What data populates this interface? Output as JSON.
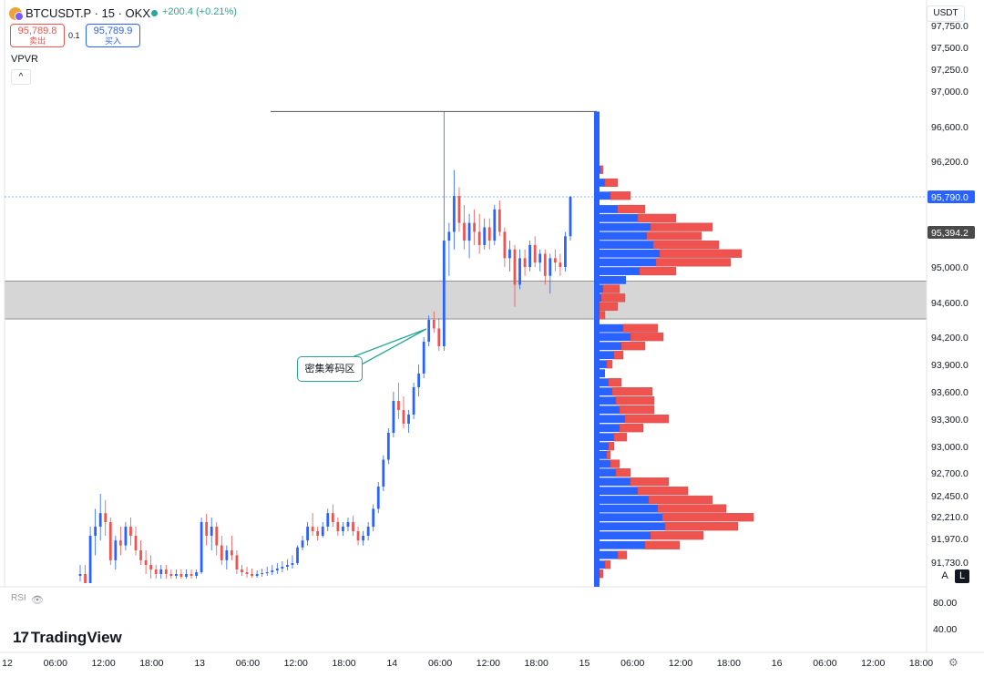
{
  "header": {
    "symbol": "BTCUSDT.P · 15 · OKX",
    "change": "+200.4 (+0.21%)",
    "sell_price": "95,789.8",
    "sell_label": "卖出",
    "spread": "0.1",
    "buy_price": "95,789.9",
    "buy_label": "买入",
    "indicator": "VPVR",
    "collapse_glyph": "^",
    "currency": "USDT"
  },
  "annotation": {
    "text": "密集筹码区"
  },
  "rsi": {
    "label": "RSI",
    "axis_ticks": [
      "80.00",
      "40.00"
    ]
  },
  "brand": {
    "mark": "17",
    "name": "TradingView"
  },
  "scale_buttons": {
    "auto": "A",
    "log": "L"
  },
  "icons": {
    "logo": "okx-btc-logo",
    "visibility": "eye-icon",
    "settings": "settings-icon"
  },
  "colors": {
    "up": "#2962ff",
    "down": "#ef5350",
    "zone": "#d1d1d1",
    "accent": "#26a69a"
  },
  "chart_data": {
    "type": "candlestick",
    "title": "BTCUSDT.P · 15 · OKX",
    "y_ticks": [
      "97,750.0",
      "97,500.0",
      "97,250.0",
      "97,000.0",
      "96,600.0",
      "96,200.0",
      "95,000.0",
      "94,600.0",
      "94,200.0",
      "93,900.0",
      "93,600.0",
      "93,300.0",
      "93,000.0",
      "92,700.0",
      "92,450.0",
      "92,210.0",
      "91,970.0",
      "91,730.0"
    ],
    "x_ticks": [
      "12",
      "06:00",
      "12:00",
      "18:00",
      "13",
      "06:00",
      "12:00",
      "18:00",
      "14",
      "06:00",
      "12:00",
      "18:00",
      "15",
      "06:00",
      "12:00",
      "18:00",
      "16",
      "06:00",
      "12:00",
      "18:00"
    ],
    "last_price": "95,790.0",
    "marked_price": "95,394.2",
    "high_price": 96770,
    "zone": {
      "low": 94410,
      "high": 94840
    },
    "ohlc": [
      [
        91580,
        91700,
        91520,
        91600
      ],
      [
        91600,
        91700,
        91400,
        91500
      ],
      [
        91500,
        92100,
        91450,
        92000
      ],
      [
        92000,
        92300,
        91800,
        92100
      ],
      [
        92100,
        92470,
        91950,
        92250
      ],
      [
        92250,
        92400,
        92000,
        92150
      ],
      [
        92150,
        92200,
        91700,
        91750
      ],
      [
        91750,
        92000,
        91650,
        91950
      ],
      [
        91950,
        92100,
        91800,
        91900
      ],
      [
        91900,
        92150,
        91850,
        92100
      ],
      [
        92100,
        92200,
        91900,
        92000
      ],
      [
        92000,
        92100,
        91800,
        91850
      ],
      [
        91850,
        91950,
        91700,
        91750
      ],
      [
        91750,
        91850,
        91600,
        91700
      ],
      [
        91700,
        91800,
        91550,
        91650
      ],
      [
        91650,
        91700,
        91550,
        91600
      ],
      [
        91600,
        91700,
        91550,
        91650
      ],
      [
        91650,
        91700,
        91550,
        91600
      ],
      [
        91600,
        91650,
        91550,
        91580
      ],
      [
        91580,
        91650,
        91550,
        91600
      ],
      [
        91600,
        91650,
        91550,
        91570
      ],
      [
        91570,
        91650,
        91550,
        91600
      ],
      [
        91600,
        91650,
        91550,
        91580
      ],
      [
        91580,
        91650,
        91550,
        91620
      ],
      [
        91620,
        92200,
        91600,
        92150
      ],
      [
        92150,
        92240,
        91900,
        92000
      ],
      [
        92000,
        92200,
        91850,
        92100
      ],
      [
        92100,
        92150,
        91800,
        91900
      ],
      [
        91900,
        92000,
        91700,
        91750
      ],
      [
        91750,
        91900,
        91650,
        91850
      ],
      [
        91850,
        92000,
        91750,
        91800
      ],
      [
        91800,
        91850,
        91600,
        91650
      ],
      [
        91650,
        91700,
        91580,
        91620
      ],
      [
        91620,
        91680,
        91560,
        91600
      ],
      [
        91600,
        91660,
        91560,
        91580
      ],
      [
        91580,
        91640,
        91560,
        91600
      ],
      [
        91600,
        91660,
        91570,
        91610
      ],
      [
        91610,
        91680,
        91580,
        91620
      ],
      [
        91620,
        91700,
        91590,
        91640
      ],
      [
        91640,
        91720,
        91600,
        91660
      ],
      [
        91660,
        91740,
        91620,
        91680
      ],
      [
        91680,
        91760,
        91640,
        91700
      ],
      [
        91700,
        91800,
        91660,
        91720
      ],
      [
        91720,
        91900,
        91700,
        91880
      ],
      [
        91880,
        92000,
        91850,
        91950
      ],
      [
        91950,
        92150,
        91900,
        92100
      ],
      [
        92100,
        92250,
        92000,
        92050
      ],
      [
        92050,
        92100,
        91950,
        92000
      ],
      [
        92000,
        92150,
        91980,
        92100
      ],
      [
        92100,
        92300,
        92050,
        92250
      ],
      [
        92250,
        92350,
        92100,
        92150
      ],
      [
        92150,
        92200,
        92000,
        92050
      ],
      [
        92050,
        92150,
        92000,
        92100
      ],
      [
        92100,
        92200,
        92050,
        92150
      ],
      [
        92150,
        92220,
        92000,
        92050
      ],
      [
        92050,
        92100,
        91900,
        91950
      ],
      [
        91950,
        92050,
        91900,
        92000
      ],
      [
        92000,
        92150,
        91950,
        92100
      ],
      [
        92100,
        92350,
        92050,
        92300
      ],
      [
        92300,
        92600,
        92250,
        92550
      ],
      [
        92550,
        92900,
        92500,
        92850
      ],
      [
        92850,
        93200,
        92800,
        93150
      ],
      [
        93150,
        93600,
        93100,
        93500
      ],
      [
        93500,
        93700,
        93300,
        93400
      ],
      [
        93400,
        93550,
        93200,
        93250
      ],
      [
        93250,
        93400,
        93150,
        93350
      ],
      [
        93350,
        93700,
        93300,
        93650
      ],
      [
        93650,
        93900,
        93550,
        93800
      ],
      [
        93800,
        94200,
        93750,
        94150
      ],
      [
        94150,
        94450,
        94100,
        94400
      ],
      [
        94400,
        94500,
        94250,
        94300
      ],
      [
        94300,
        94420,
        94050,
        94100
      ],
      [
        94100,
        96770,
        94050,
        95300
      ],
      [
        95300,
        95500,
        94900,
        95400
      ],
      [
        95400,
        96100,
        95200,
        95800
      ],
      [
        95800,
        95900,
        95400,
        95500
      ],
      [
        95500,
        95700,
        95200,
        95300
      ],
      [
        95300,
        95600,
        95100,
        95500
      ],
      [
        95500,
        95650,
        95250,
        95400
      ],
      [
        95400,
        95600,
        95150,
        95250
      ],
      [
        95250,
        95550,
        95200,
        95450
      ],
      [
        95450,
        95550,
        95200,
        95300
      ],
      [
        95300,
        95700,
        95250,
        95650
      ],
      [
        95650,
        95750,
        95350,
        95400
      ],
      [
        95400,
        95450,
        95000,
        95100
      ],
      [
        95100,
        95300,
        94950,
        95200
      ],
      [
        95200,
        95250,
        94550,
        94800
      ],
      [
        94800,
        95200,
        94750,
        95100
      ],
      [
        95100,
        95200,
        94900,
        95000
      ],
      [
        95000,
        95300,
        94950,
        95250
      ],
      [
        95250,
        95350,
        95000,
        95050
      ],
      [
        95050,
        95200,
        94950,
        95150
      ],
      [
        95150,
        95200,
        94800,
        94900
      ],
      [
        94900,
        95150,
        94700,
        95100
      ],
      [
        95100,
        95200,
        94950,
        95050
      ],
      [
        95050,
        95150,
        94900,
        95000
      ],
      [
        95000,
        95400,
        94950,
        95350
      ],
      [
        95350,
        95800,
        95300,
        95790
      ]
    ],
    "volume_profile": [
      [
        96700,
        5,
        0
      ],
      [
        96500,
        5,
        0
      ],
      [
        96300,
        6,
        0
      ],
      [
        96100,
        7,
        3
      ],
      [
        95950,
        12,
        14
      ],
      [
        95800,
        18,
        22
      ],
      [
        95650,
        26,
        30
      ],
      [
        95550,
        48,
        42
      ],
      [
        95450,
        62,
        68
      ],
      [
        95350,
        58,
        60
      ],
      [
        95250,
        65,
        72
      ],
      [
        95150,
        72,
        90
      ],
      [
        95050,
        68,
        82
      ],
      [
        94950,
        50,
        40
      ],
      [
        94850,
        35,
        0
      ],
      [
        94750,
        10,
        18
      ],
      [
        94650,
        8,
        26
      ],
      [
        94550,
        6,
        20
      ],
      [
        94450,
        4,
        8
      ],
      [
        94300,
        32,
        38
      ],
      [
        94200,
        40,
        36
      ],
      [
        94100,
        30,
        26
      ],
      [
        94000,
        22,
        10
      ],
      [
        93900,
        14,
        6
      ],
      [
        93800,
        12,
        0
      ],
      [
        93700,
        16,
        14
      ],
      [
        93600,
        20,
        44
      ],
      [
        93500,
        24,
        42
      ],
      [
        93400,
        28,
        38
      ],
      [
        93300,
        34,
        48
      ],
      [
        93200,
        28,
        26
      ],
      [
        93100,
        22,
        14
      ],
      [
        93000,
        16,
        6
      ],
      [
        92900,
        14,
        4
      ],
      [
        92800,
        18,
        10
      ],
      [
        92700,
        24,
        16
      ],
      [
        92600,
        40,
        42
      ],
      [
        92500,
        48,
        55
      ],
      [
        92400,
        60,
        70
      ],
      [
        92300,
        70,
        75
      ],
      [
        92200,
        75,
        100
      ],
      [
        92100,
        78,
        80
      ],
      [
        92000,
        62,
        58
      ],
      [
        91900,
        56,
        38
      ],
      [
        91800,
        26,
        10
      ],
      [
        91700,
        12,
        6
      ],
      [
        91600,
        6,
        4
      ],
      [
        91550,
        4,
        2
      ]
    ]
  }
}
